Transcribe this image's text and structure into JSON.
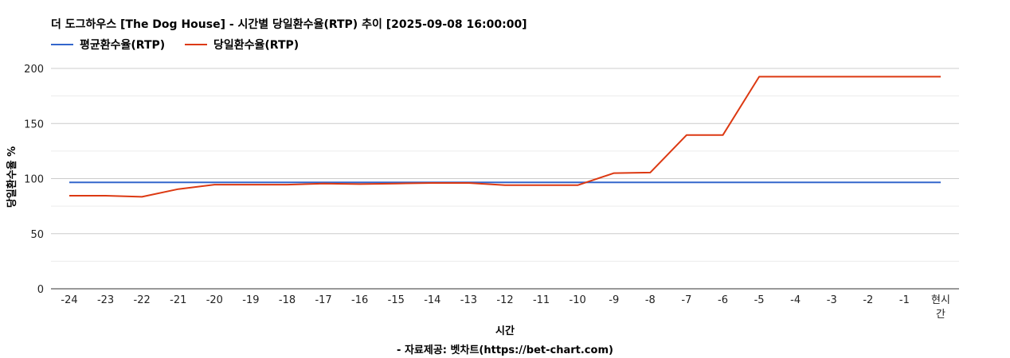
{
  "chart_data": {
    "type": "line",
    "title": "더 도그하우스 [The Dog House] - 시간별 당일환수율(RTP) 추이 [2025-09-08 16:00:00]",
    "xlabel": "시간",
    "ylabel": "당일환수율 %",
    "footer": "- 자료제공: 벳차트(https://bet-chart.com)",
    "categories": [
      "-24",
      "-23",
      "-22",
      "-21",
      "-20",
      "-19",
      "-18",
      "-17",
      "-16",
      "-15",
      "-14",
      "-13",
      "-12",
      "-11",
      "-10",
      "-9",
      "-8",
      "-7",
      "-6",
      "-5",
      "-4",
      "-3",
      "-2",
      "-1",
      "현시간"
    ],
    "yticks": [
      0,
      50,
      100,
      150,
      200
    ],
    "ylim": [
      0,
      200
    ],
    "grid": true,
    "legend_position": "top-left",
    "series": [
      {
        "name": "평균환수율(RTP)",
        "color": "#3366cc",
        "values": [
          96.5,
          96.5,
          96.5,
          96.5,
          96.5,
          96.5,
          96.5,
          96.5,
          96.5,
          96.5,
          96.5,
          96.5,
          96.5,
          96.5,
          96.5,
          96.5,
          96.5,
          96.5,
          96.5,
          96.5,
          96.5,
          96.5,
          96.5,
          96.5,
          96.5
        ]
      },
      {
        "name": "당일환수율(RTP)",
        "color": "#dc3912",
        "values": [
          84.5,
          84.5,
          83.5,
          90.5,
          94.5,
          94.5,
          94.5,
          95.5,
          95.0,
          95.5,
          96.0,
          96.0,
          94.0,
          94.0,
          94.0,
          105.0,
          105.5,
          139.5,
          139.5,
          192.5,
          192.5,
          192.5,
          192.5,
          192.5,
          192.5
        ]
      }
    ]
  }
}
